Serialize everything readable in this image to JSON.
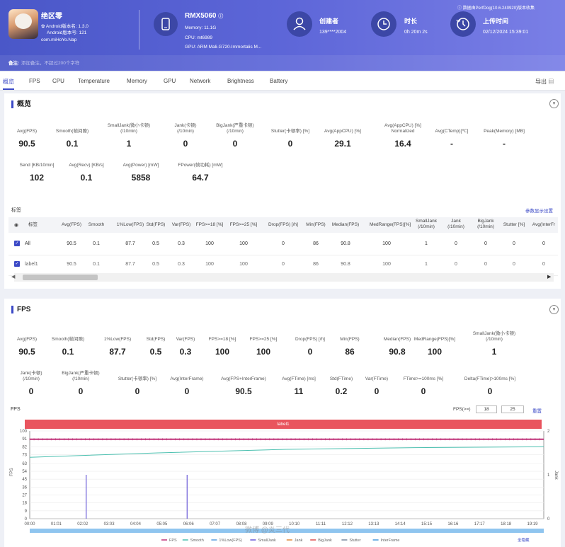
{
  "header": {
    "app_name": "绝区零",
    "android_version": "Android版本名: 1.3.0",
    "android_code": "Android版本号: 121",
    "package": "com.miHoYo.Nap",
    "device": "RMX5060",
    "memory": "Memory: 11.1G",
    "cpu": "CPU: mt6989",
    "gpu": "GPU: ARM Mali-G720-Immortalis M...",
    "creator_label": "创建者",
    "creator_value": "139****2004",
    "duration_label": "时长",
    "duration_value": "0h 20m 2s",
    "upload_label": "上传时间",
    "upload_value": "02/12/2024 15:39:01",
    "version_note": "数据由PerfDog(10.6.240920)版本收集",
    "note_label": "备注:",
    "note_placeholder": "添加备注，不超过200个字符"
  },
  "tabs": [
    "概览",
    "FPS",
    "CPU",
    "Temperature",
    "Memory",
    "GPU",
    "Network",
    "Brightness",
    "Battery"
  ],
  "export_label": "导出",
  "overview": {
    "title": "概览",
    "metrics_row1": [
      {
        "label": "Avg(FPS)",
        "value": "90.5"
      },
      {
        "label": "Smooth(帧间隙)",
        "value": "0.1"
      },
      {
        "label": "SmallJank(微小卡顿)\n(/10min)",
        "value": "1"
      },
      {
        "label": "Jank(卡顿)\n(/10min)",
        "value": "0"
      },
      {
        "label": "BigJank(严重卡顿)\n(/10min)",
        "value": "0"
      },
      {
        "label": "Stutter(卡顿率) [%]",
        "value": "0"
      },
      {
        "label": "Avg(AppCPU) [%]",
        "value": "29.1"
      },
      {
        "label": "Avg(AppCPU) [%]\nNormalized",
        "value": "16.4"
      },
      {
        "label": "Avg(CTemp)[℃]",
        "value": "-"
      },
      {
        "label": "Peak(Memory) [MB]",
        "value": "-"
      }
    ],
    "metrics_row2": [
      {
        "label": "Send [KB/10min]",
        "value": "102"
      },
      {
        "label": "Avg(Recv) [KB/s]",
        "value": "0.1"
      },
      {
        "label": "Avg(Power) [mW]",
        "value": "5858"
      },
      {
        "label": "FPower(帧功耗) [mW]",
        "value": "64.7"
      }
    ],
    "tags_label": "标签",
    "tags_settings": "参数显示设置",
    "table_headers": [
      "标签",
      "Avg(FPS)",
      "Smooth",
      "1%Low(FPS)",
      "Std(FPS)",
      "Var(FPS)",
      "FPS>=18 [%]",
      "FPS>=25 [%]",
      "Drop(FPS) [/h]",
      "Min(FPS)",
      "Median(FPS)",
      "MedRange(FPS)[%]",
      "SmallJank\n(/10min)",
      "Jank\n(/10min)",
      "BigJank\n(/10min)",
      "Stutter [%]",
      "Avg(InterFr"
    ],
    "rows": [
      [
        "All",
        "90.5",
        "0.1",
        "87.7",
        "0.5",
        "0.3",
        "100",
        "100",
        "0",
        "86",
        "90.8",
        "100",
        "1",
        "0",
        "0",
        "0",
        "0"
      ],
      [
        "label1",
        "90.5",
        "0.1",
        "87.7",
        "0.5",
        "0.3",
        "100",
        "100",
        "0",
        "86",
        "90.8",
        "100",
        "1",
        "0",
        "0",
        "0",
        "0"
      ]
    ]
  },
  "fps_section": {
    "title": "FPS",
    "metrics_row1": [
      {
        "label": "Avg(FPS)",
        "value": "90.5"
      },
      {
        "label": "Smooth(帧间隙)",
        "value": "0.1"
      },
      {
        "label": "1%Low(FPS)",
        "value": "87.7"
      },
      {
        "label": "Std(FPS)",
        "value": "0.5"
      },
      {
        "label": "Var(FPS)",
        "value": "0.3"
      },
      {
        "label": "FPS>=18 [%]",
        "value": "100"
      },
      {
        "label": "FPS>=25 [%]",
        "value": "100"
      },
      {
        "label": "Drop(FPS) [/h]",
        "value": "0"
      },
      {
        "label": "Min(FPS)",
        "value": "86"
      },
      {
        "label": "Median(FPS)",
        "value": "90.8"
      },
      {
        "label": "MedRange(FPS)[%]",
        "value": "100"
      },
      {
        "label": "SmallJank(微小卡顿)\n(/10min)",
        "value": "1"
      }
    ],
    "metrics_row2": [
      {
        "label": "Jank(卡顿)\n(/10min)",
        "value": "0"
      },
      {
        "label": "BigJank(严重卡顿)\n(/10min)",
        "value": "0"
      },
      {
        "label": "Stutter(卡顿率) [%]",
        "value": "0"
      },
      {
        "label": "Avg(InterFrame)",
        "value": "0"
      },
      {
        "label": "Avg(FPS+InterFrame)",
        "value": "90.5"
      },
      {
        "label": "Avg(FTime) [ms]",
        "value": "11"
      },
      {
        "label": "Std(FTime)",
        "value": "0.2"
      },
      {
        "label": "Var(FTime)",
        "value": "0"
      },
      {
        "label": "FTime>=100ms [%]",
        "value": "0"
      },
      {
        "label": "Delta(FTime)>100ms [%]",
        "value": "0"
      }
    ],
    "chart_title": "FPS",
    "fps_threshold_label": "FPS(>=)",
    "fps_threshold_1": "18",
    "fps_threshold_2": "25",
    "reset_label": "重置",
    "label_bar": "label1",
    "hide_all_label": "全隐藏",
    "watermark": "微博 @炎三代"
  },
  "chart_data": {
    "type": "line",
    "title": "FPS",
    "xlabel": "",
    "ylabel": "FPS",
    "y2label": "Jank",
    "ylim": [
      0,
      100
    ],
    "y2lim": [
      0,
      2
    ],
    "yticks": [
      0,
      9,
      18,
      27,
      36,
      45,
      54,
      63,
      73,
      82,
      91,
      100
    ],
    "y2ticks": [
      0,
      1,
      2
    ],
    "x_ticks": [
      "00:00",
      "01:01",
      "02:02",
      "03:03",
      "04:04",
      "05:05",
      "06:06",
      "07:07",
      "08:08",
      "09:09",
      "10:10",
      "11:11",
      "12:12",
      "13:13",
      "14:14",
      "15:15",
      "16:16",
      "17:17",
      "18:18",
      "19:19"
    ],
    "x_range_sec": [
      0,
      1202
    ],
    "series": [
      {
        "name": "FPS",
        "color": "#c0347a",
        "values_sec": [
          [
            0,
            90.5
          ],
          [
            1202,
            90.5
          ]
        ]
      },
      {
        "name": "Smooth",
        "color": "#4cc0b0",
        "values_sec": [
          [
            0,
            70
          ],
          [
            300,
            75
          ],
          [
            600,
            79
          ],
          [
            900,
            81
          ],
          [
            1202,
            82
          ]
        ]
      },
      {
        "name": "1%Low(FPS)",
        "color": "#5aa0e0",
        "values_sec": []
      },
      {
        "name": "SmallJank",
        "color": "#6b5bd8",
        "spikes_sec": [
          [
            132,
            50
          ],
          [
            368,
            50
          ]
        ]
      },
      {
        "name": "Jank",
        "color": "#e08a3c",
        "values_sec": []
      },
      {
        "name": "BigJank",
        "color": "#e05050",
        "values_sec": []
      },
      {
        "name": "Stutter",
        "color": "#7a8aa0",
        "values_sec": []
      },
      {
        "name": "InterFrame",
        "color": "#4a9adc",
        "values_sec": []
      }
    ],
    "legend_position": "bottom"
  },
  "colors": {
    "accent": "#3b49c6",
    "label_bar": "#e9545e"
  }
}
